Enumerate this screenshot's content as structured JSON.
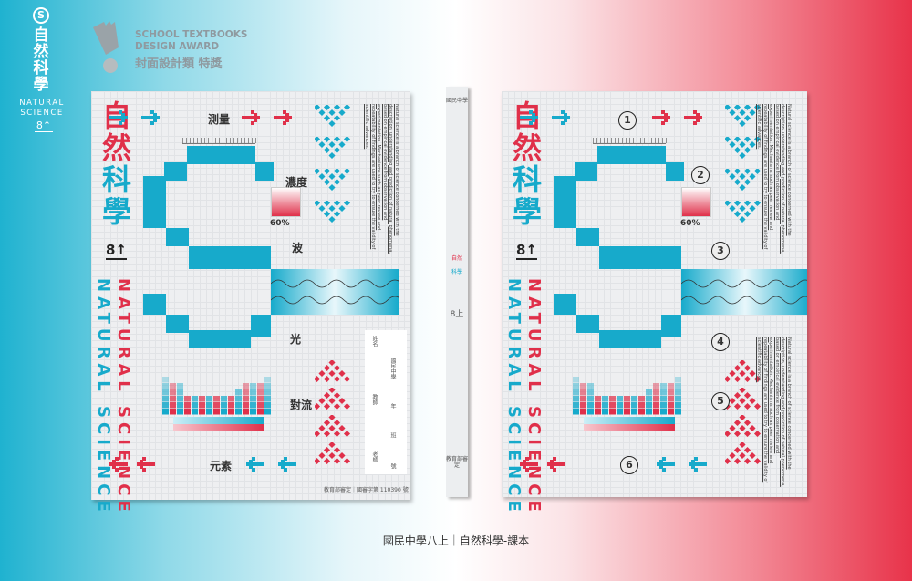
{
  "colors": {
    "cyan": "#17aacb",
    "red": "#e0304a"
  },
  "brand": {
    "icon": "s-circle-icon",
    "s": "S",
    "title": "自然科學",
    "english": "NATURAL SCIENCE",
    "grade": "8↑"
  },
  "award": {
    "line1": "SCHOOL TEXTBOOKS",
    "line2": "DESIGN AWARD",
    "zh": "封面設計類  特獎",
    "logo": "exclamation-brush-logo"
  },
  "covers": [
    {
      "title": [
        "自",
        "然",
        "科",
        "學"
      ],
      "grade": "8↑",
      "english": "NATURAL SCIENCE",
      "labels": {
        "measure": "測量",
        "concentration": "濃度",
        "percent": "60%",
        "wave": "波",
        "light": "光",
        "convection": "對流",
        "element": "元素"
      },
      "paragraph": "Natural science is a branch of science concerned with the description, understanding and prediction of natural phenomena, based on empirical evidence from observation and experimentation. Mechanisms such as peer review and repeatability of findings are used to try to ensure the validity of scientific advances.",
      "namebox": {
        "name": "姓名",
        "school": "國民中學",
        "teacher": "教師",
        "year": "年",
        "class": "班",
        "mentor": "老師",
        "number": "號"
      },
      "footer": "教育部審定｜國審字第 110390 號"
    },
    {
      "title": [
        "自",
        "然",
        "科",
        "學"
      ],
      "grade": "8↑",
      "english": "NATURAL SCIENCE",
      "labels": {
        "measure": "1",
        "concentration": "2",
        "percent": "60%",
        "wave": "3",
        "light": "4",
        "convection": "5",
        "element": "6"
      },
      "paragraph": "Natural science is a branch of science concerned with the description, understanding and prediction of natural phenomena, based on empirical evidence from observation and experimentation. Mechanisms such as peer review and repeatability of findings are used to try to ensure the validity of scientific advances.",
      "paragraph2": "Natural science is a branch of science concerned with the description, understanding and prediction of natural phenomena, based on empirical evidence from observation and experimentation. Mechanisms such as peer review and repeatability of findings are used to try to ensure the validity of scientific advances."
    }
  ],
  "spine": {
    "school": "國民中學",
    "title_red": "自然",
    "title_cyan": "科學",
    "grade": "8上",
    "approval": "教育部審定"
  },
  "caption": "國民中學八上｜自然科學-課本"
}
